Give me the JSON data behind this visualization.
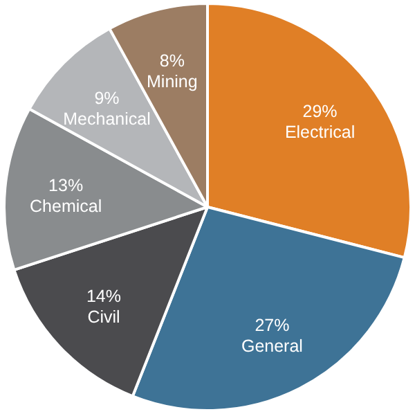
{
  "chart_data": {
    "type": "pie",
    "categories": [
      "Electrical",
      "General",
      "Civil",
      "Chemical",
      "Mechanical",
      "Mining"
    ],
    "values": [
      29,
      27,
      14,
      13,
      9,
      8
    ],
    "value_labels": [
      "29%",
      "27%",
      "14%",
      "13%",
      "9%",
      "8%"
    ],
    "colors": [
      "#e07f26",
      "#3e7396",
      "#4b4b4e",
      "#898c8e",
      "#b4b6b9",
      "#9c7d63"
    ]
  }
}
